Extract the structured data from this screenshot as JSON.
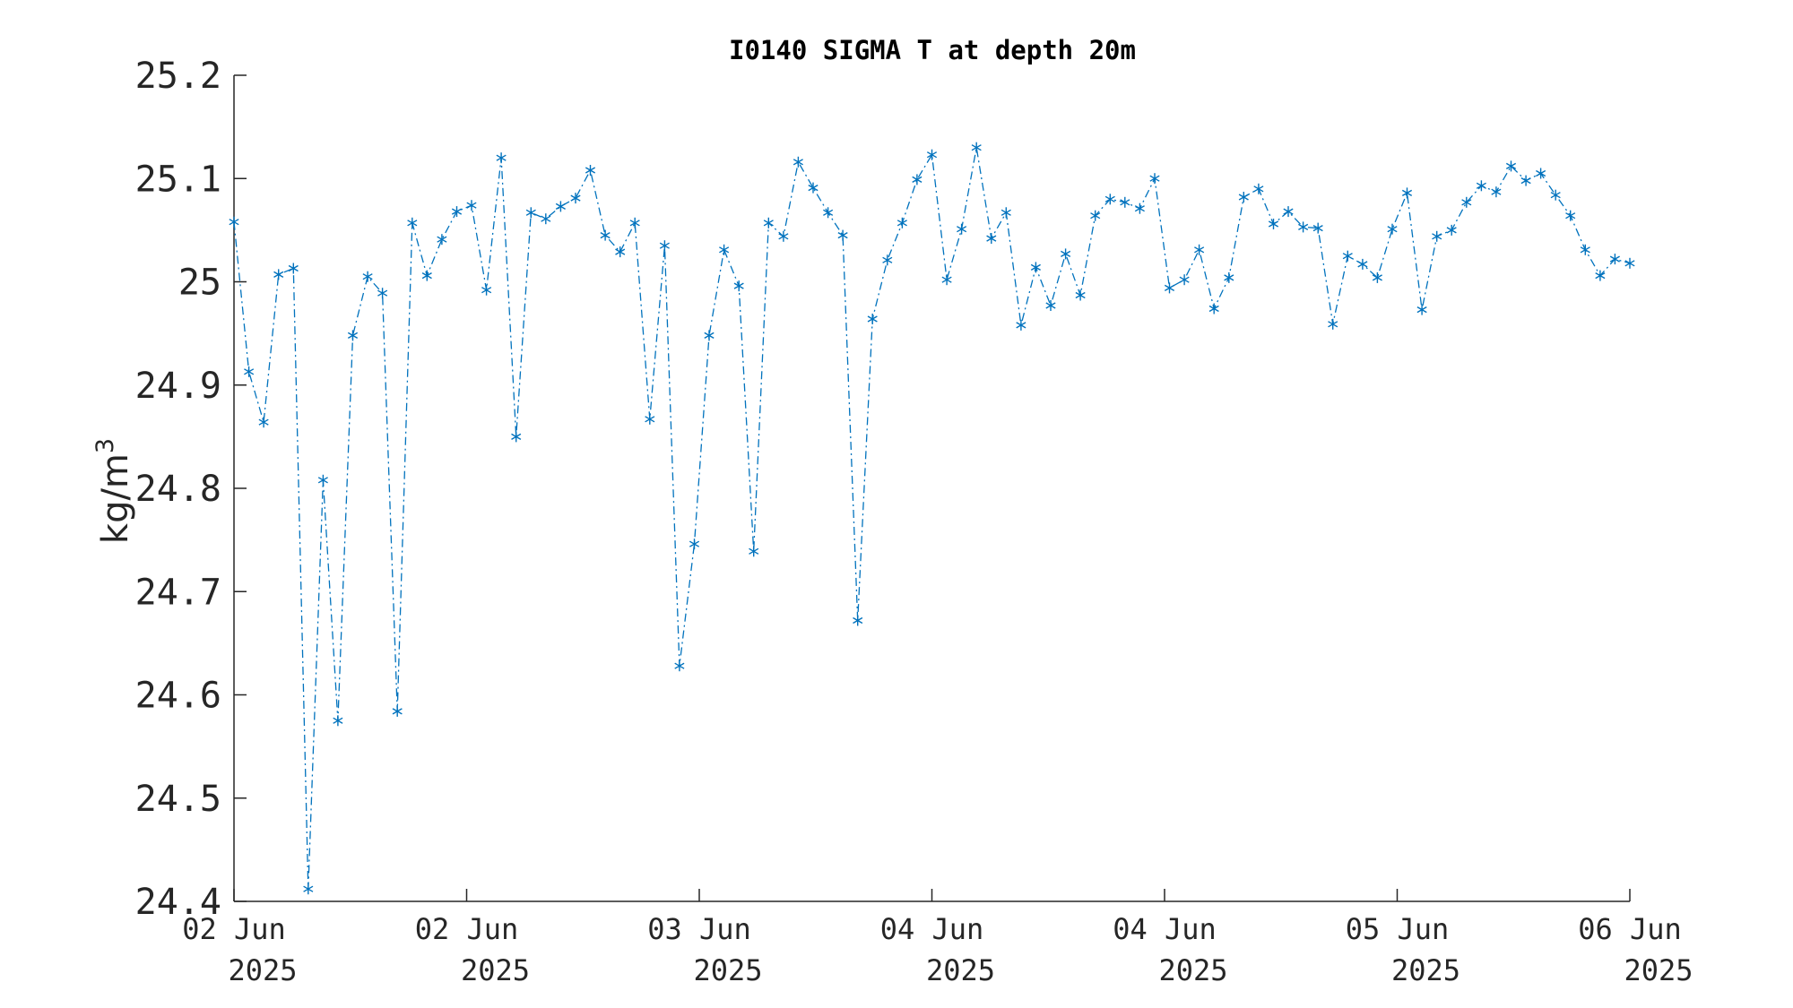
{
  "chart_data": {
    "type": "line",
    "title": "I0140 SIGMA T at depth 20m",
    "xlabel": "",
    "ylabel": "kg/m",
    "ylabel_superscript": "3",
    "ylim": [
      24.4,
      25.2
    ],
    "yticks": [
      "24.4",
      "24.5",
      "24.6",
      "24.7",
      "24.8",
      "24.9",
      "25",
      "25.1",
      "25.2"
    ],
    "xticks": [
      {
        "day": "02 Jun",
        "year": "2025"
      },
      {
        "day": "02 Jun",
        "year": "2025"
      },
      {
        "day": "03 Jun",
        "year": "2025"
      },
      {
        "day": "04 Jun",
        "year": "2025"
      },
      {
        "day": "04 Jun",
        "year": "2025"
      },
      {
        "day": "05 Jun",
        "year": "2025"
      },
      {
        "day": "06 Jun",
        "year": "2025"
      }
    ],
    "grid": false,
    "series": [
      {
        "line_style": "dash-dot",
        "marker": "asterisk",
        "color": "#0072BD",
        "values": [
          25.058,
          24.913,
          24.864,
          25.007,
          25.013,
          24.412,
          24.808,
          24.575,
          24.948,
          25.005,
          24.989,
          24.584,
          25.057,
          25.006,
          25.041,
          25.068,
          25.074,
          24.992,
          25.12,
          24.85,
          25.067,
          25.061,
          25.073,
          25.081,
          25.108,
          25.045,
          25.029,
          25.057,
          24.867,
          25.035,
          24.628,
          24.746,
          24.948,
          25.031,
          24.996,
          24.739,
          25.057,
          25.044,
          25.116,
          25.091,
          25.067,
          25.045,
          24.672,
          24.964,
          25.021,
          25.057,
          25.099,
          25.123,
          25.002,
          25.051,
          25.13,
          25.042,
          25.067,
          24.958,
          25.014,
          24.977,
          25.027,
          24.987,
          25.064,
          25.08,
          25.077,
          25.071,
          25.1,
          24.994,
          25.002,
          25.031,
          24.974,
          25.004,
          25.082,
          25.09,
          25.056,
          25.068,
          25.053,
          25.052,
          24.959,
          25.025,
          25.017,
          25.004,
          25.051,
          25.086,
          24.973,
          25.044,
          25.05,
          25.077,
          25.093,
          25.087,
          25.112,
          25.098,
          25.105,
          25.084,
          25.064,
          25.031,
          25.006,
          25.022,
          25.018
        ]
      }
    ]
  }
}
